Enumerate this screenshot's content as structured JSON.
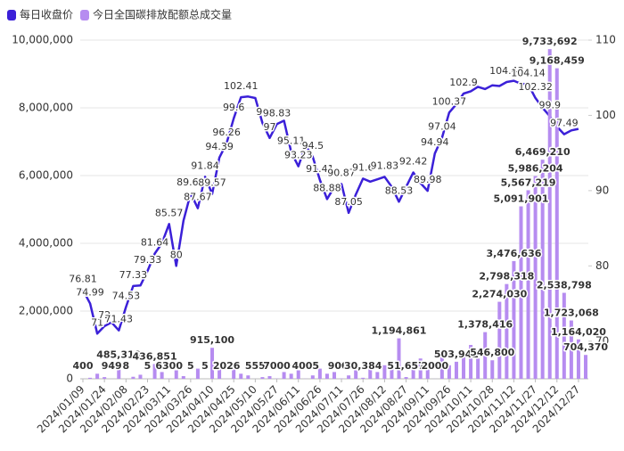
{
  "chart_data": {
    "type": "combo",
    "categories": [
      "2024/01/09",
      null,
      null,
      "2024/01/24",
      null,
      null,
      "2024/02/08",
      null,
      null,
      "2024/02/23",
      null,
      null,
      "2024/03/11",
      null,
      null,
      "2024/03/26",
      null,
      null,
      "2024/04/10",
      null,
      null,
      "2024/04/25",
      null,
      null,
      "2024/05/10",
      null,
      null,
      "2024/05/27",
      null,
      null,
      "2024/06/11",
      null,
      null,
      "2024/06/26",
      null,
      null,
      "2024/07/11",
      null,
      null,
      "2024/07/26",
      null,
      null,
      "2024/08/12",
      null,
      null,
      "2024/08/27",
      null,
      null,
      "2024/09/11",
      null,
      null,
      "2024/09/26",
      null,
      null,
      "2024/10/11",
      null,
      null,
      "2024/10/28",
      null,
      null,
      "2024/11/12",
      null,
      null,
      "2024/11/27",
      null,
      null,
      "2024/12/12",
      null,
      null,
      "2024/12/27",
      null
    ],
    "series": [
      {
        "name": "每日收盘价",
        "type": "line",
        "axis": "y2",
        "color": "#3b20d8",
        "values": [
          76.81,
          74.99,
          71,
          72,
          72.5,
          71.43,
          74.53,
          77.33,
          77.4,
          79.33,
          81.64,
          83,
          85.57,
          80,
          86,
          89.64,
          87.67,
          91.84,
          89.57,
          94.39,
          96.26,
          99.6,
          102.41,
          102.5,
          102.3,
          99,
          97,
          98.83,
          99.3,
          95.11,
          93.23,
          96,
          94.5,
          91.41,
          88.88,
          90.5,
          90.87,
          87.05,
          89.5,
          91.6,
          91.2,
          91.5,
          91.83,
          90.5,
          88.53,
          90.5,
          92.42,
          91,
          89.98,
          94.94,
          97.04,
          100.37,
          101.5,
          102.9,
          103.2,
          103.8,
          103.5,
          104,
          103.9,
          104.43,
          104.6,
          104.2,
          104.14,
          102.32,
          101,
          99.9,
          98.5,
          97.49,
          98,
          98.2,
          null
        ],
        "value_labels": [
          "76.81",
          "74.99",
          "71",
          "72",
          null,
          "71.43",
          "74.53",
          "77.33",
          null,
          "79.33",
          "81.64",
          null,
          "85.57",
          "80",
          null,
          "89.64",
          "87.67",
          "91.84",
          "89.57",
          "94.39",
          "96.26",
          "99.6",
          "102.41",
          null,
          null,
          "99",
          "97",
          "98.83",
          null,
          "95.11",
          "93.23",
          null,
          "94.5",
          "91.41",
          "88.88",
          null,
          "90.87",
          "87.05",
          null,
          "91.6",
          null,
          null,
          "91.83",
          null,
          "88.53",
          null,
          "92.42",
          null,
          "89.98",
          "94.94",
          "97.04",
          "100.37",
          null,
          "102.9",
          null,
          null,
          null,
          null,
          null,
          "104.43",
          null,
          null,
          "104.14",
          "102.32",
          null,
          "99.9",
          null,
          "97.49",
          null,
          null,
          null
        ]
      },
      {
        "name": "今日全国碳排放配额总成交量",
        "type": "bar",
        "axis": "y",
        "color": "#b68cf0",
        "values": [
          400,
          30000,
          150000,
          50000,
          949,
          485310,
          8,
          60000,
          120000,
          5,
          436851,
          200000,
          6300,
          250000,
          80000,
          5,
          300000,
          5,
          915100,
          400000,
          2026,
          350000,
          150000,
          100000,
          555,
          50000,
          80000,
          7000,
          200000,
          150000,
          250000,
          4005,
          100000,
          300000,
          150000,
          200000,
          9005,
          100000,
          250000,
          30384,
          300000,
          200000,
          400000,
          500000,
          1194861,
          51657,
          400000,
          600000,
          300000,
          2000,
          700000,
          400000,
          503942,
          800000,
          1000000,
          600000,
          1378416,
          546800,
          2274030,
          2798318,
          3476636,
          5091901,
          5567219,
          5986204,
          6469210,
          9733692,
          9168459,
          2538798,
          1723068,
          1164020,
          704370
        ],
        "value_labels": [
          "400",
          null,
          null,
          null,
          "949",
          "485,310",
          "8",
          null,
          null,
          "5",
          "436,851",
          null,
          "6300",
          null,
          null,
          "5",
          null,
          "5",
          "915,100",
          null,
          "2026",
          null,
          null,
          null,
          "555",
          null,
          null,
          "7000",
          null,
          null,
          null,
          "4005",
          null,
          null,
          null,
          null,
          "9005",
          null,
          null,
          "30,384",
          null,
          null,
          null,
          null,
          "1,194,861",
          "51,657",
          null,
          null,
          null,
          "2000",
          null,
          null,
          "503,942",
          null,
          null,
          null,
          "1,378,416",
          "546,800",
          "2,274,030",
          "2,798,318",
          "3,476,636",
          "5,091,901",
          "5,567,219",
          "5,986,204",
          "6,469,210",
          "9,733,692",
          "9,168,459",
          "2,538,798",
          "1,723,068",
          "1,164,020",
          "704,370"
        ]
      }
    ],
    "ylim": [
      0,
      10000000
    ],
    "yticks": [
      0,
      {
        "value": 2000000,
        "label": "2,000,000"
      },
      {
        "value": 4000000,
        "label": "4,000,000"
      },
      {
        "value": 6000000,
        "label": "6,000,000"
      },
      {
        "value": 8000000,
        "label": "8,000,000"
      },
      {
        "value": 10000000,
        "label": "10,000,000"
      }
    ],
    "y2lim": [
      65,
      110
    ],
    "y2ticks": [
      70,
      80,
      90,
      100,
      110
    ],
    "grid": true
  }
}
